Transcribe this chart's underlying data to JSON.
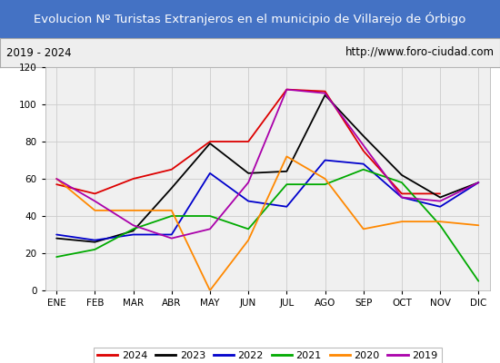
{
  "title": "Evolucion Nº Turistas Extranjeros en el municipio de Villarejo de Órbigo",
  "subtitle_left": "2019 - 2024",
  "subtitle_right": "http://www.foro-ciudad.com",
  "title_bg_color": "#4472c4",
  "title_text_color": "#ffffff",
  "subtitle_bg_color": "#eeeeee",
  "months": [
    "ENE",
    "FEB",
    "MAR",
    "ABR",
    "MAY",
    "JUN",
    "JUL",
    "AGO",
    "SEP",
    "OCT",
    "NOV",
    "DIC"
  ],
  "series": {
    "2024": {
      "color": "#dd0000",
      "data": [
        57,
        52,
        60,
        65,
        80,
        80,
        108,
        107,
        75,
        52,
        52,
        null
      ]
    },
    "2023": {
      "color": "#000000",
      "data": [
        28,
        26,
        32,
        55,
        79,
        63,
        64,
        105,
        83,
        62,
        50,
        58
      ]
    },
    "2022": {
      "color": "#0000cc",
      "data": [
        30,
        27,
        30,
        30,
        63,
        48,
        45,
        70,
        68,
        50,
        45,
        58
      ]
    },
    "2021": {
      "color": "#00aa00",
      "data": [
        18,
        22,
        33,
        40,
        40,
        33,
        57,
        57,
        65,
        58,
        35,
        5
      ]
    },
    "2020": {
      "color": "#ff8800",
      "data": [
        60,
        43,
        43,
        43,
        0,
        27,
        72,
        60,
        33,
        37,
        37,
        35
      ]
    },
    "2019": {
      "color": "#aa00aa",
      "data": [
        60,
        48,
        35,
        28,
        33,
        58,
        108,
        106,
        78,
        50,
        48,
        58
      ]
    }
  },
  "ylim": [
    0,
    120
  ],
  "yticks": [
    0,
    20,
    40,
    60,
    80,
    100,
    120
  ],
  "grid_color": "#cccccc",
  "plot_bg_color": "#f0f0f0",
  "fig_bg_color": "#ffffff",
  "legend_order": [
    "2024",
    "2023",
    "2022",
    "2021",
    "2020",
    "2019"
  ],
  "figsize": [
    5.5,
    4.0
  ],
  "dpi": 100
}
